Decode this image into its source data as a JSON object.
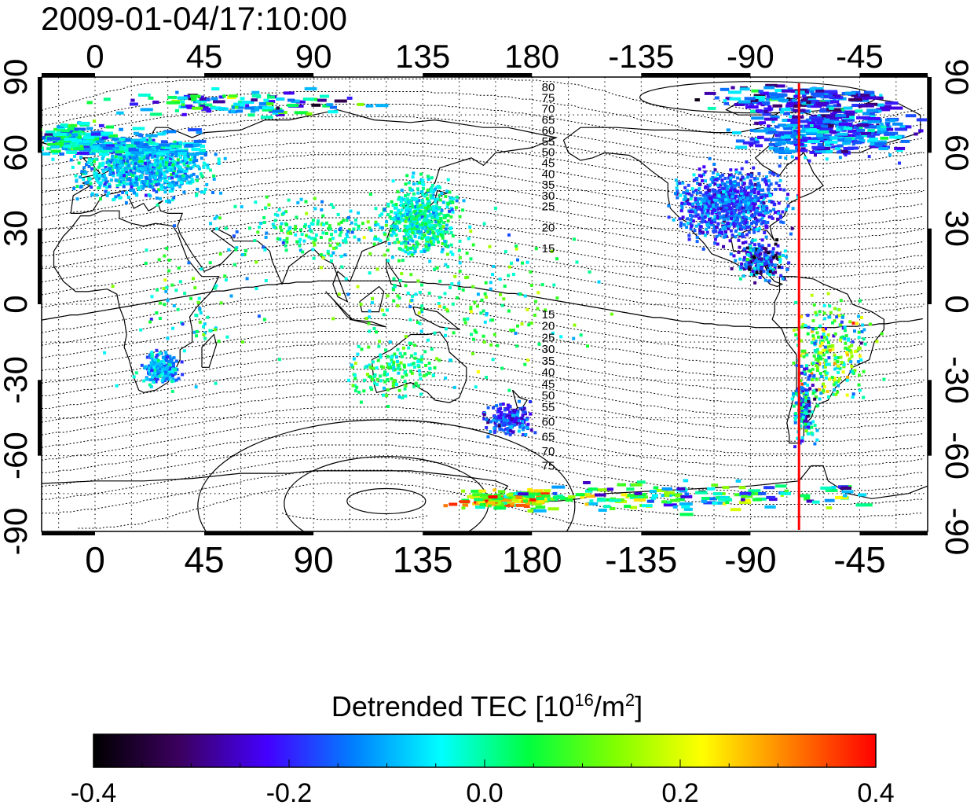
{
  "timestamp": "2009-01-04/17:10:00",
  "map": {
    "x_ticks": [
      "0",
      "45",
      "90",
      "135",
      "180",
      "-135",
      "-90",
      "-45"
    ],
    "x_tick_lon": [
      0,
      45,
      90,
      135,
      180,
      225,
      270,
      315
    ],
    "y_ticks": [
      "90",
      "60",
      "30",
      "0",
      "-30",
      "-60",
      "-90"
    ],
    "y_tick_lat": [
      90,
      60,
      30,
      0,
      -30,
      -60,
      -90
    ],
    "lon_range": [
      -22,
      343
    ],
    "lat_range": [
      -90,
      90
    ],
    "grid": "dotted 15 degree",
    "terminator_lon": 290,
    "terminator_color": "#ff0000",
    "contours_north": [
      "80",
      "75",
      "70",
      "65",
      "60",
      "55",
      "50",
      "45",
      "40",
      "35",
      "30",
      "25",
      "20",
      "15"
    ],
    "contours_south": [
      "15",
      "20",
      "25",
      "30",
      "35",
      "40",
      "45",
      "50",
      "55",
      "60",
      "65",
      "70",
      "75"
    ]
  },
  "colorbar": {
    "title_main": "Detrended TEC  [10",
    "title_exp": "16",
    "title_unit": "/m",
    "title_exp2": "2",
    "title_end": "]",
    "min": -0.4,
    "max": 0.4,
    "tick_labels": [
      "-0.4",
      "-0.2",
      "0.0",
      "0.2",
      "0.4"
    ],
    "colors": [
      "#000000",
      "#3c0060",
      "#4400ff",
      "#0080ff",
      "#00ffff",
      "#00ff40",
      "#80ff00",
      "#ffff00",
      "#ff8000",
      "#ff0000"
    ]
  }
}
